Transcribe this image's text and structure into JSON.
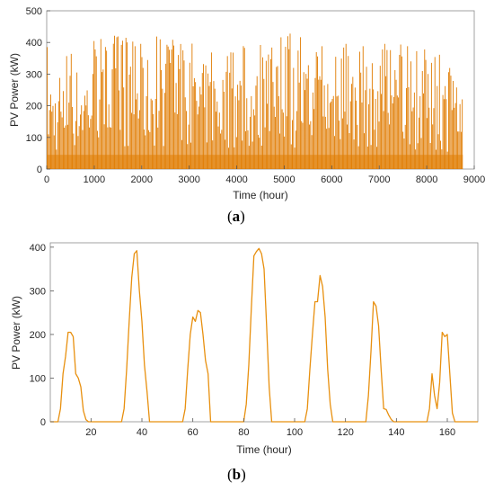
{
  "panels": {
    "a": {
      "label_open": "(",
      "label_letter": "a",
      "label_close": ")"
    },
    "b": {
      "label_open": "(",
      "label_letter": "b",
      "label_close": ")"
    }
  },
  "chart_data": [
    {
      "id": "a",
      "type": "line",
      "xlabel": "Time (hour)",
      "ylabel": "PV Power (kW)",
      "xlim": [
        0,
        9000
      ],
      "ylim": [
        0,
        500
      ],
      "xticks": [
        0,
        1000,
        2000,
        3000,
        4000,
        5000,
        6000,
        7000,
        8000,
        9000
      ],
      "yticks": [
        0,
        100,
        200,
        300,
        400,
        500
      ],
      "grid": false,
      "color": "#e07b00",
      "series": [
        {
          "hours": 8760,
          "peak_points": [
            [
              0,
              390
            ],
            [
              300,
              300
            ],
            [
              420,
              410
            ],
            [
              700,
              405
            ],
            [
              900,
              420
            ],
            [
              1100,
              410
            ],
            [
              1250,
              440
            ],
            [
              1500,
              420
            ],
            [
              1800,
              420
            ],
            [
              2000,
              445
            ],
            [
              2200,
              455
            ],
            [
              2400,
              420
            ],
            [
              2500,
              455
            ],
            [
              2800,
              400
            ],
            [
              3000,
              395
            ],
            [
              3200,
              420
            ],
            [
              3500,
              415
            ],
            [
              3800,
              410
            ],
            [
              4000,
              435
            ],
            [
              4200,
              400
            ],
            [
              4500,
              395
            ],
            [
              4800,
              410
            ],
            [
              5000,
              450
            ],
            [
              5200,
              430
            ],
            [
              5500,
              420
            ],
            [
              5800,
              415
            ],
            [
              6000,
              410
            ],
            [
              6300,
              405
            ],
            [
              6500,
              410
            ],
            [
              6700,
              420
            ],
            [
              7000,
              430
            ],
            [
              7300,
              410
            ],
            [
              7500,
              400
            ],
            [
              7800,
              395
            ],
            [
              8000,
              380
            ],
            [
              8200,
              385
            ],
            [
              8400,
              375
            ],
            [
              8600,
              290
            ],
            [
              8760,
              280
            ]
          ]
        }
      ]
    },
    {
      "id": "b",
      "type": "line",
      "xlabel": "Time (hour)",
      "ylabel": "PV Power (kW)",
      "xlim": [
        4,
        172
      ],
      "ylim": [
        0,
        410
      ],
      "xticks": [
        20,
        40,
        60,
        80,
        100,
        120,
        140,
        160
      ],
      "yticks": [
        0,
        100,
        200,
        300,
        400
      ],
      "grid": false,
      "color": "#e8900f",
      "series": [
        {
          "x": [
            4,
            7,
            8,
            9,
            10,
            11,
            12,
            13,
            14,
            15,
            16,
            17,
            18,
            19,
            32,
            33,
            34,
            35,
            36,
            37,
            38,
            39,
            40,
            41,
            42,
            43,
            56,
            57,
            58,
            59,
            60,
            61,
            62,
            63,
            64,
            65,
            66,
            67,
            80,
            81,
            82,
            83,
            84,
            85,
            86,
            87,
            88,
            89,
            90,
            91,
            104,
            105,
            106,
            107,
            108,
            109,
            110,
            111,
            112,
            113,
            114,
            115,
            128,
            129,
            130,
            131,
            132,
            133,
            134,
            135,
            136,
            137,
            138,
            139,
            152,
            153,
            154,
            155,
            156,
            157,
            158,
            159,
            160,
            161,
            162,
            163,
            172
          ],
          "y": [
            0,
            0,
            30,
            110,
            150,
            205,
            205,
            195,
            110,
            100,
            80,
            25,
            5,
            0,
            0,
            30,
            120,
            230,
            330,
            385,
            392,
            300,
            230,
            130,
            70,
            0,
            0,
            30,
            120,
            200,
            240,
            230,
            255,
            250,
            200,
            140,
            110,
            0,
            0,
            40,
            130,
            260,
            380,
            390,
            397,
            385,
            350,
            220,
            80,
            0,
            0,
            30,
            120,
            200,
            275,
            275,
            335,
            310,
            240,
            120,
            40,
            0,
            0,
            60,
            160,
            275,
            265,
            220,
            120,
            30,
            28,
            15,
            5,
            0,
            0,
            30,
            110,
            60,
            30,
            90,
            205,
            195,
            200,
            110,
            20,
            0,
            0
          ]
        }
      ]
    }
  ]
}
